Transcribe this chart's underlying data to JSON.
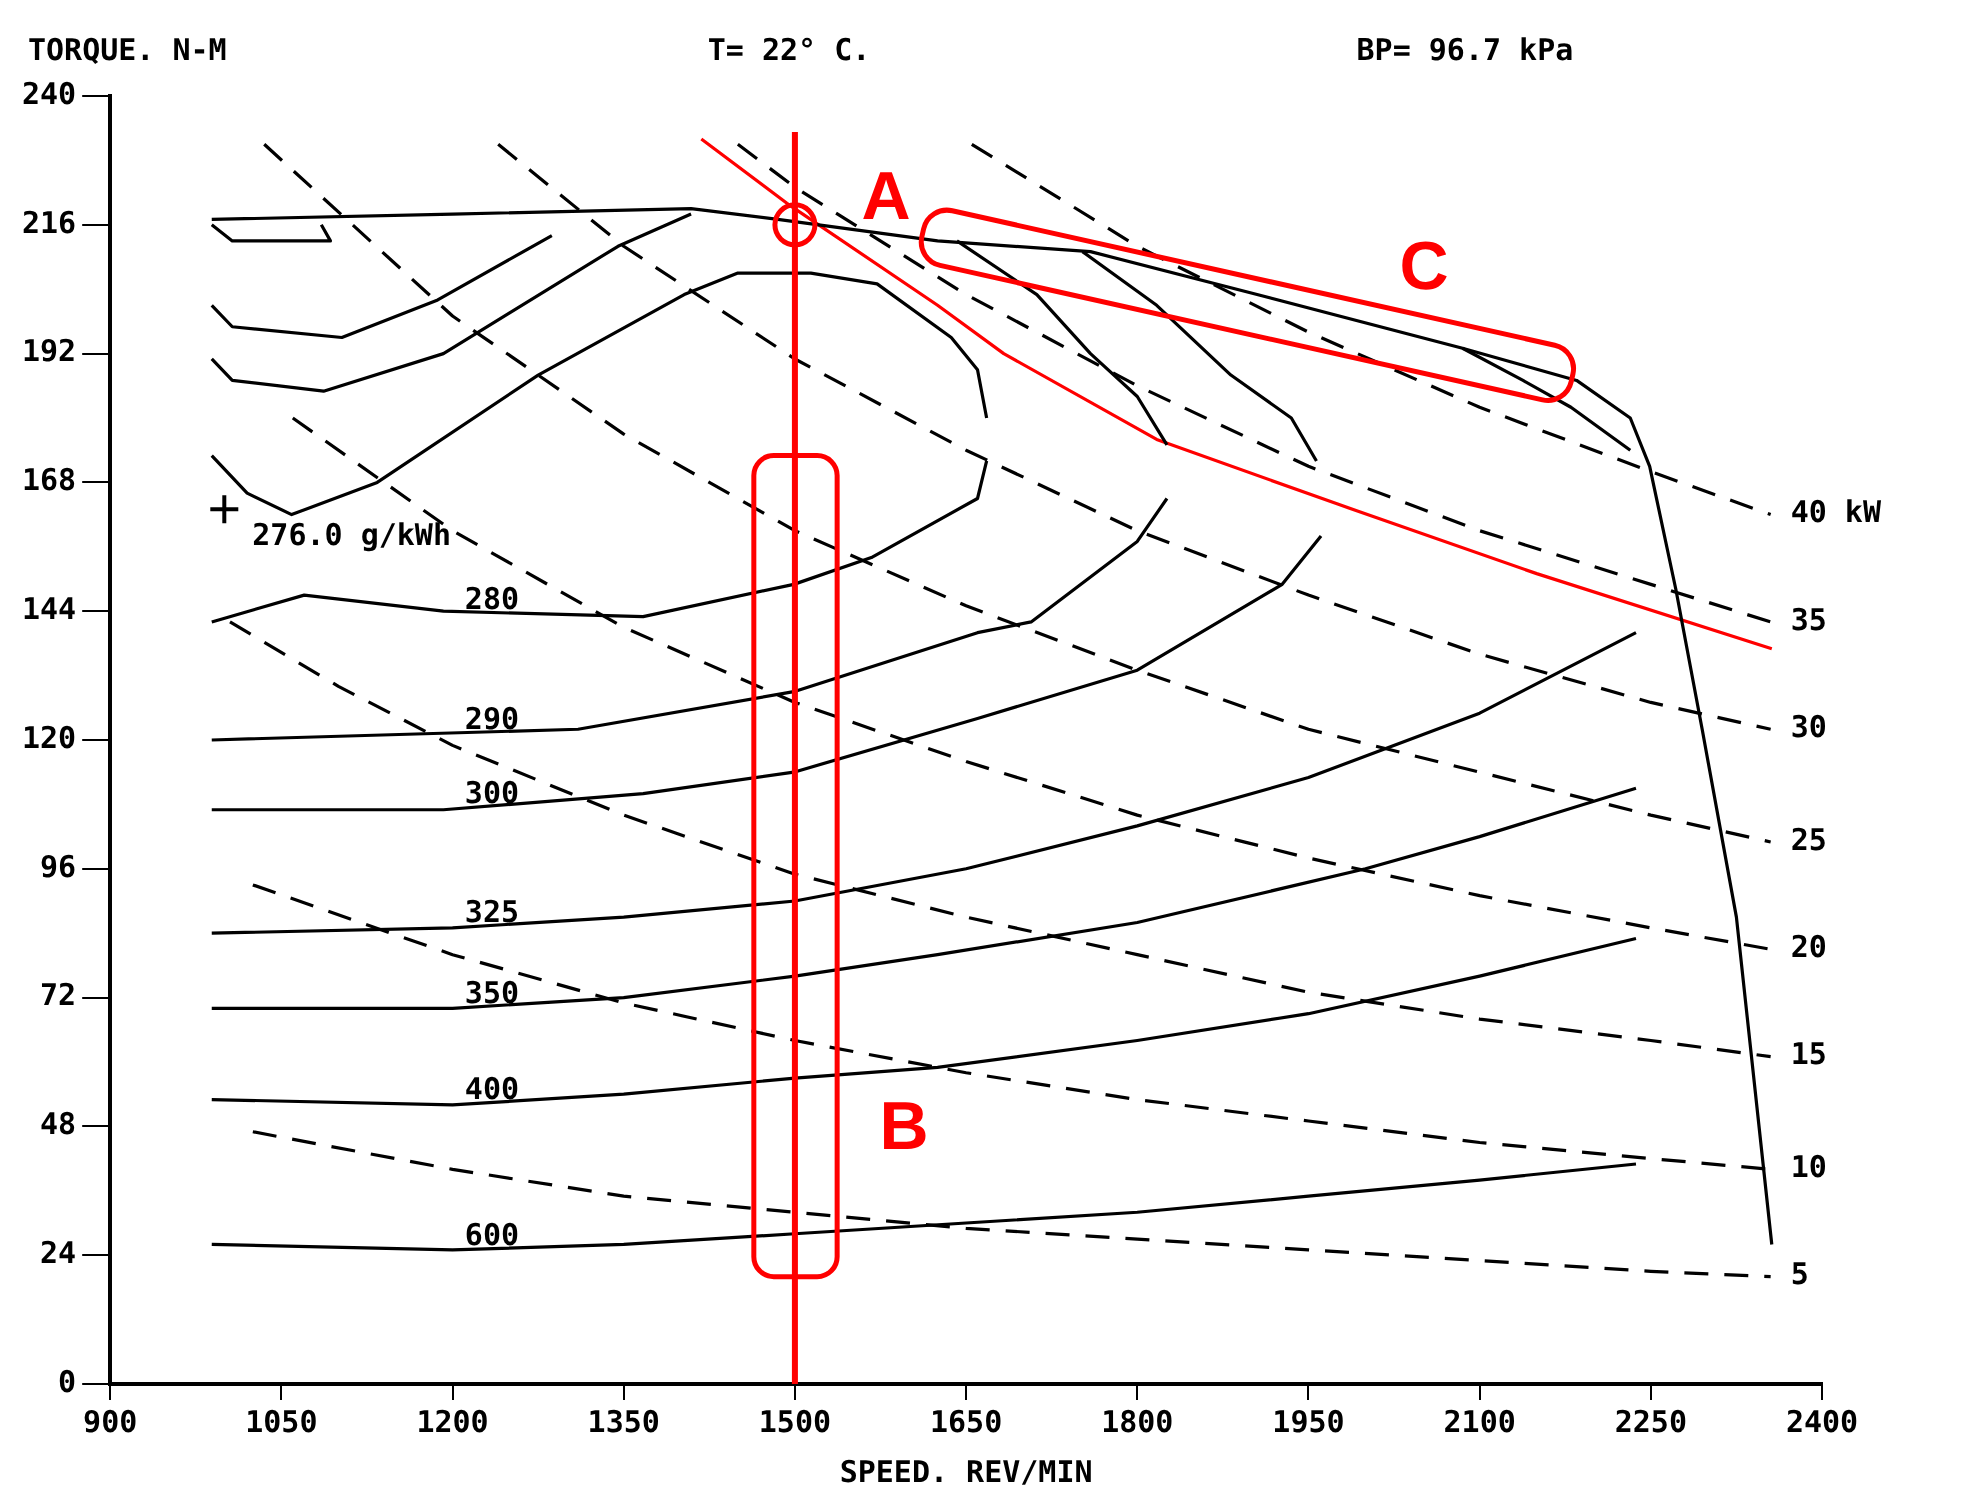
{
  "chart_data": {
    "type": "line",
    "xlabel": "SPEED. REV/MIN",
    "ylabel": "TORQUE. N-M",
    "xlim": [
      900,
      2400
    ],
    "xticks": [
      900,
      1050,
      1200,
      1350,
      1500,
      1650,
      1800,
      1950,
      2100,
      2250,
      2400
    ],
    "ylim": [
      0,
      240
    ],
    "yticks": [
      0,
      24,
      48,
      72,
      96,
      120,
      144,
      168,
      192,
      216,
      240
    ],
    "grid": false,
    "legend": false,
    "marker": "none",
    "annotations": [
      "T= 22° C.",
      "BP= 96.7 kPa",
      "A",
      "B",
      "C"
    ],
    "ref_lines": [
      {
        "axis": "x",
        "value": 1500,
        "color": "#ff0000"
      }
    ],
    "series": [
      {
        "name": "40 kW",
        "color": "#000000",
        "line_style": "dashed",
        "x": [
          1655,
          1800,
          1950,
          2100,
          2250,
          2355
        ],
        "values": [
          231,
          212,
          196,
          182,
          170,
          162
        ]
      },
      {
        "name": "35",
        "color": "#000000",
        "line_style": "dashed",
        "x": [
          1450,
          1500,
          1650,
          1800,
          1950,
          2100,
          2250,
          2355
        ],
        "values": [
          231,
          223,
          203,
          186,
          171,
          159,
          149,
          142
        ]
      },
      {
        "name": "30",
        "color": "#000000",
        "line_style": "dashed",
        "x": [
          1240,
          1350,
          1500,
          1650,
          1800,
          1950,
          2100,
          2250,
          2355
        ],
        "values": [
          231,
          212,
          191,
          174,
          159,
          147,
          136,
          127,
          122
        ]
      },
      {
        "name": "25",
        "color": "#000000",
        "line_style": "dashed",
        "x": [
          1035,
          1200,
          1350,
          1500,
          1650,
          1800,
          1950,
          2100,
          2250,
          2355
        ],
        "values": [
          231,
          199,
          177,
          159,
          145,
          133,
          122,
          114,
          106,
          101
        ]
      },
      {
        "name": "20",
        "color": "#000000",
        "line_style": "dashed",
        "x": [
          1060,
          1200,
          1350,
          1500,
          1650,
          1800,
          1950,
          2100,
          2250,
          2355
        ],
        "values": [
          180,
          159,
          141,
          127,
          116,
          106,
          98,
          91,
          85,
          81
        ]
      },
      {
        "name": "15",
        "color": "#000000",
        "line_style": "dashed",
        "x": [
          1005,
          1100,
          1200,
          1350,
          1500,
          1650,
          1800,
          1950,
          2100,
          2250,
          2355
        ],
        "values": [
          142,
          130,
          119,
          106,
          95,
          87,
          80,
          73,
          68,
          64,
          61
        ]
      },
      {
        "name": "10",
        "color": "#000000",
        "line_style": "dashed",
        "x": [
          1025,
          1200,
          1350,
          1500,
          1650,
          1800,
          1950,
          2100,
          2250,
          2355
        ],
        "values": [
          93,
          80,
          71,
          64,
          58,
          53,
          49,
          45,
          42,
          40
        ]
      },
      {
        "name": "5",
        "color": "#000000",
        "line_style": "dashed",
        "x": [
          1025,
          1200,
          1350,
          1500,
          1650,
          1800,
          1950,
          2100,
          2250,
          2355
        ],
        "values": [
          47,
          40,
          35,
          32,
          29,
          27,
          25,
          23,
          21,
          20
        ]
      },
      {
        "name": "280",
        "color": "#000000",
        "line_style": "solid",
        "x": [
          989,
          1070,
          1192,
          1367,
          1499,
          1567,
          1660,
          1668
        ],
        "values": [
          142,
          147,
          144,
          143,
          149,
          154,
          165,
          172
        ]
      },
      {
        "name": "290",
        "color": "#000000",
        "line_style": "solid",
        "x": [
          989,
          1310,
          1499,
          1660,
          1707,
          1800,
          1826
        ],
        "values": [
          120,
          122,
          129,
          140,
          142,
          157,
          165
        ]
      },
      {
        "name": "300",
        "color": "#000000",
        "line_style": "solid",
        "x": [
          989,
          1192,
          1367,
          1499,
          1660,
          1800,
          1927,
          1961
        ],
        "values": [
          107,
          107,
          110,
          114,
          124,
          133,
          149,
          158
        ]
      },
      {
        "name": "325",
        "color": "#000000",
        "line_style": "solid",
        "x": [
          989,
          1200,
          1350,
          1500,
          1650,
          1800,
          1950,
          2100,
          2237
        ],
        "values": [
          84,
          85,
          87,
          90,
          96,
          104,
          113,
          125,
          140
        ]
      },
      {
        "name": "350",
        "color": "#000000",
        "line_style": "solid",
        "x": [
          989,
          1200,
          1350,
          1500,
          1625,
          1800,
          2000,
          2100,
          2237
        ],
        "values": [
          70,
          70,
          72,
          76,
          80,
          86,
          96,
          102,
          111
        ]
      },
      {
        "name": "400",
        "color": "#000000",
        "line_style": "solid",
        "x": [
          989,
          1200,
          1350,
          1500,
          1625,
          1800,
          1950,
          2100,
          2237
        ],
        "values": [
          53,
          52,
          54,
          57,
          59,
          64,
          69,
          76,
          83
        ]
      },
      {
        "name": "600",
        "color": "#000000",
        "line_style": "solid",
        "x": [
          989,
          1200,
          1350,
          1500,
          1650,
          1800,
          1950,
          2100,
          2237
        ],
        "values": [
          26,
          25,
          26,
          28,
          30,
          32,
          35,
          38,
          41
        ]
      },
      {
        "color": "#000000",
        "line_style": "solid",
        "x": [
          989,
          1020,
          1059,
          1134,
          1275,
          1403,
          1450,
          1514,
          1572,
          1637,
          1660,
          1668
        ],
        "values": [
          173,
          166,
          162,
          168,
          188,
          203,
          207,
          207,
          205,
          195,
          189,
          180
        ]
      },
      {
        "color": "#000000",
        "line_style": "solid",
        "x": [
          989,
          1007,
          1103,
          1187,
          1287
        ],
        "values": [
          201,
          197,
          195,
          202,
          214
        ]
      },
      {
        "color": "#000000",
        "line_style": "solid",
        "x": [
          989,
          1007,
          1087,
          1192,
          1345,
          1409
        ],
        "values": [
          191,
          187,
          185,
          192,
          212,
          218
        ]
      },
      {
        "color": "#000000",
        "line_style": "solid",
        "x": [
          989,
          1007,
          1093,
          1085
        ],
        "values": [
          216,
          213,
          213,
          216
        ]
      },
      {
        "color": "#000000",
        "line_style": "solid",
        "x": [
          1642,
          1712,
          1759,
          1800,
          1826
        ],
        "values": [
          213,
          203,
          192,
          184,
          175
        ]
      },
      {
        "color": "#000000",
        "line_style": "solid",
        "x": [
          1752,
          1817,
          1882,
          1935,
          1957
        ],
        "values": [
          211,
          201,
          188,
          180,
          172
        ]
      },
      {
        "color": "#000000",
        "line_style": "solid",
        "x": [
          2085,
          2138,
          2180,
          2232
        ],
        "values": [
          193,
          187,
          182,
          174
        ]
      },
      {
        "color": "#000000",
        "line_style": "solid",
        "x": [
          989,
          1200,
          1409,
          1485,
          1625,
          1759,
          1905,
          2085,
          2185,
          2232,
          2249,
          2272,
          2295,
          2325,
          2356
        ],
        "values": [
          217,
          218,
          219,
          217,
          213,
          211,
          203,
          193,
          187,
          180,
          171,
          148,
          122,
          87,
          26
        ]
      },
      {
        "color": "#ff0000",
        "line_style": "solid",
        "x": [
          1418,
          1493,
          1625,
          1683,
          1817,
          1975,
          2150,
          2356
        ],
        "values": [
          232,
          220,
          201,
          192,
          176,
          164,
          151,
          137
        ]
      },
      {
        "name": "276.0 g/kWh",
        "type": "scatter",
        "marker": "cross",
        "color": "#000000",
        "x": [
          1000
        ],
        "values": [
          163
        ]
      }
    ]
  }
}
